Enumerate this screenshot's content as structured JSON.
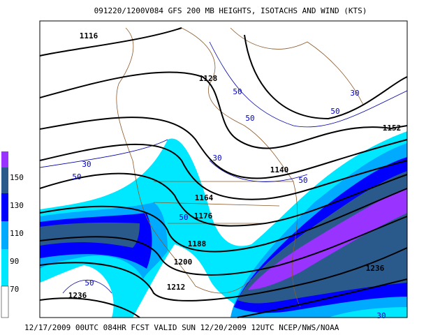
{
  "title": "091220/1200V084 GFS 200 MB  HEIGHTS, ISOTACHS AND WIND (KTS)",
  "footer": "12/17/2009 00UTC 084HR FCST VALID SUN 12/20/2009 12UTC  NCEP/NWS/NOAA",
  "color_scale": [
    "150",
    "130",
    "110",
    "90",
    "70"
  ],
  "height_labels": [
    "1116",
    "1128",
    "1140",
    "1152",
    "1164",
    "1176",
    "1188",
    "1200",
    "1212",
    "1236",
    "1236"
  ],
  "isotach_labels": [
    "50",
    "30",
    "50",
    "50",
    "30",
    "50",
    "30",
    "50",
    "50",
    "50",
    "30"
  ]
}
